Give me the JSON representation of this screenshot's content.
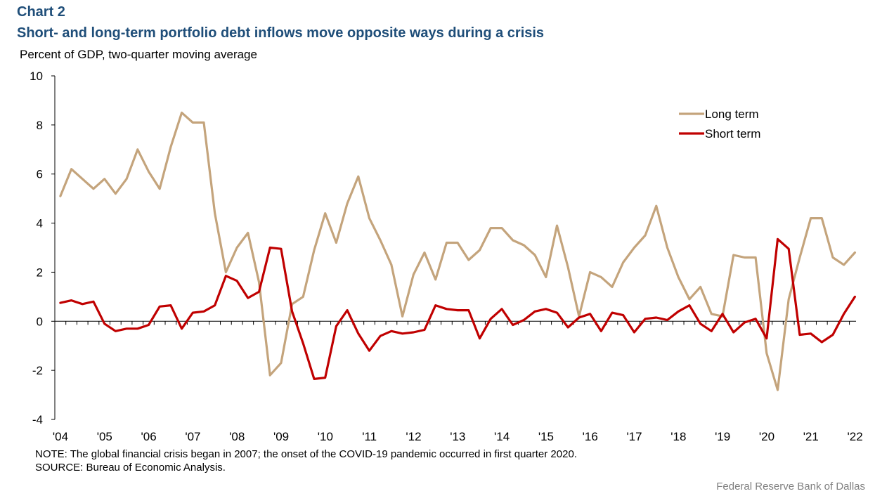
{
  "header": {
    "label": "Chart 2",
    "title": "Short- and long-term portfolio debt inflows move opposite ways during a crisis",
    "subtitle": "Percent of GDP, two-quarter moving average"
  },
  "footer": {
    "note": "NOTE: The global financial crisis began in 2007; the onset of the COVID-19 pandemic occurred in first quarter 2020.",
    "source": "SOURCE: Bureau of Economic Analysis.",
    "credit": "Federal Reserve Bank of Dallas"
  },
  "chart_data": {
    "type": "line",
    "x_start": "2004Q1",
    "frequency": "quarterly",
    "ylim": [
      -4,
      10
    ],
    "yticks": [
      -4,
      -2,
      0,
      2,
      4,
      6,
      8,
      10
    ],
    "xtick_labels": [
      "'04",
      "'05",
      "'06",
      "'07",
      "'08",
      "'09",
      "'10",
      "'11",
      "'12",
      "'13",
      "'14",
      "'15",
      "'16",
      "'17",
      "'18",
      "'19",
      "'20",
      "'21",
      "'22"
    ],
    "legend_position": "top-right",
    "series": [
      {
        "name": "Long term",
        "color": "#c4a47c",
        "values": [
          5.1,
          6.2,
          5.8,
          5.4,
          5.8,
          5.2,
          5.8,
          7.0,
          6.1,
          5.4,
          7.1,
          8.5,
          8.1,
          8.1,
          4.4,
          2.0,
          3.0,
          3.6,
          1.6,
          -2.2,
          -1.7,
          0.7,
          1.0,
          2.9,
          4.4,
          3.2,
          4.8,
          5.9,
          4.2,
          3.3,
          2.3,
          0.2,
          1.9,
          2.8,
          1.7,
          3.2,
          3.2,
          2.5,
          2.9,
          3.8,
          3.8,
          3.3,
          3.1,
          2.7,
          1.8,
          3.9,
          2.2,
          0.2,
          2.0,
          1.8,
          1.4,
          2.4,
          3.0,
          3.5,
          4.7,
          3.0,
          1.8,
          0.9,
          1.4,
          0.3,
          0.2,
          2.7,
          2.6,
          2.6,
          -1.3,
          -2.8,
          0.9,
          2.6,
          4.2,
          4.2,
          2.6,
          2.3,
          2.8
        ]
      },
      {
        "name": "Short term",
        "color": "#c00000",
        "values": [
          0.75,
          0.85,
          0.7,
          0.8,
          -0.1,
          -0.4,
          -0.3,
          -0.3,
          -0.15,
          0.6,
          0.65,
          -0.3,
          0.35,
          0.4,
          0.65,
          1.85,
          1.65,
          0.95,
          1.2,
          3.0,
          2.95,
          0.4,
          -0.9,
          -2.35,
          -2.3,
          -0.2,
          0.45,
          -0.5,
          -1.2,
          -0.6,
          -0.4,
          -0.5,
          -0.45,
          -0.35,
          0.65,
          0.5,
          0.45,
          0.45,
          -0.7,
          0.1,
          0.5,
          -0.15,
          0.05,
          0.4,
          0.5,
          0.35,
          -0.25,
          0.15,
          0.3,
          -0.4,
          0.35,
          0.25,
          -0.45,
          0.1,
          0.15,
          0.05,
          0.4,
          0.65,
          -0.1,
          -0.4,
          0.3,
          -0.45,
          -0.05,
          0.1,
          -0.7,
          3.35,
          2.95,
          -0.55,
          -0.5,
          -0.85,
          -0.55,
          0.3,
          1.0
        ]
      }
    ]
  }
}
